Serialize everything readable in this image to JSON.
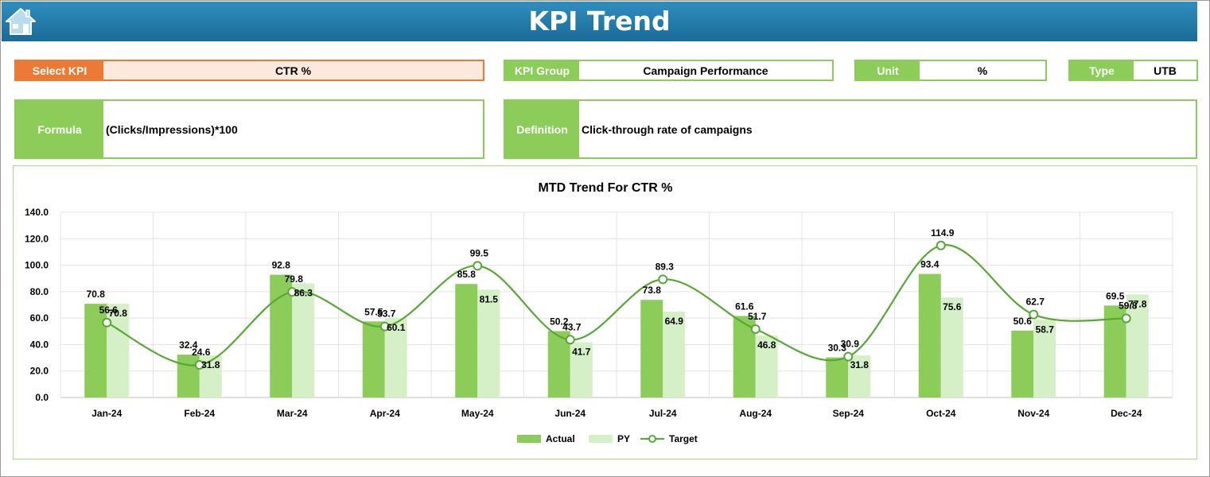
{
  "header": {
    "title": "KPI Trend",
    "home_icon": "home-icon"
  },
  "select_kpi": {
    "label": "Select KPI",
    "value": "CTR %"
  },
  "kpi_group": {
    "label": "KPI Group",
    "value": "Campaign Performance"
  },
  "unit": {
    "label": "Unit",
    "value": "%"
  },
  "type": {
    "label": "Type",
    "value": "UTB"
  },
  "formula": {
    "label": "Formula",
    "value": "(Clicks/Impressions)*100"
  },
  "definition": {
    "label": "Definition",
    "value": "Click-through rate of campaigns"
  },
  "colors": {
    "header": "#1f77a8",
    "accent_orange": "#ec7a37",
    "green": "#8ccd59",
    "light_green": "#d5efc7",
    "target_line": "#56a834"
  },
  "chart_data": {
    "type": "bar",
    "title": "MTD Trend For CTR %",
    "categories": [
      "Jan-24",
      "Feb-24",
      "Mar-24",
      "Apr-24",
      "May-24",
      "Jun-24",
      "Jul-24",
      "Aug-24",
      "Sep-24",
      "Oct-24",
      "Nov-24",
      "Dec-24"
    ],
    "series": [
      {
        "name": "Actual",
        "kind": "bar",
        "values": [
          70.8,
          32.4,
          92.8,
          57.5,
          85.8,
          50.2,
          73.8,
          61.6,
          30.3,
          93.4,
          50.6,
          69.5
        ]
      },
      {
        "name": "PY",
        "kind": "bar",
        "values": [
          70.8,
          31.8,
          86.3,
          60.1,
          81.5,
          41.7,
          64.9,
          46.8,
          31.8,
          75.6,
          58.7,
          77.8
        ]
      },
      {
        "name": "Target",
        "kind": "line",
        "values": [
          56.6,
          24.6,
          79.8,
          53.7,
          99.5,
          43.7,
          89.3,
          51.7,
          30.9,
          114.9,
          62.7,
          59.8
        ]
      }
    ],
    "ylim": [
      0,
      140
    ],
    "yticks": [
      "0.0",
      "20.0",
      "40.0",
      "60.0",
      "80.0",
      "100.0",
      "120.0",
      "140.0"
    ],
    "grid": true,
    "legend": "bottom"
  }
}
